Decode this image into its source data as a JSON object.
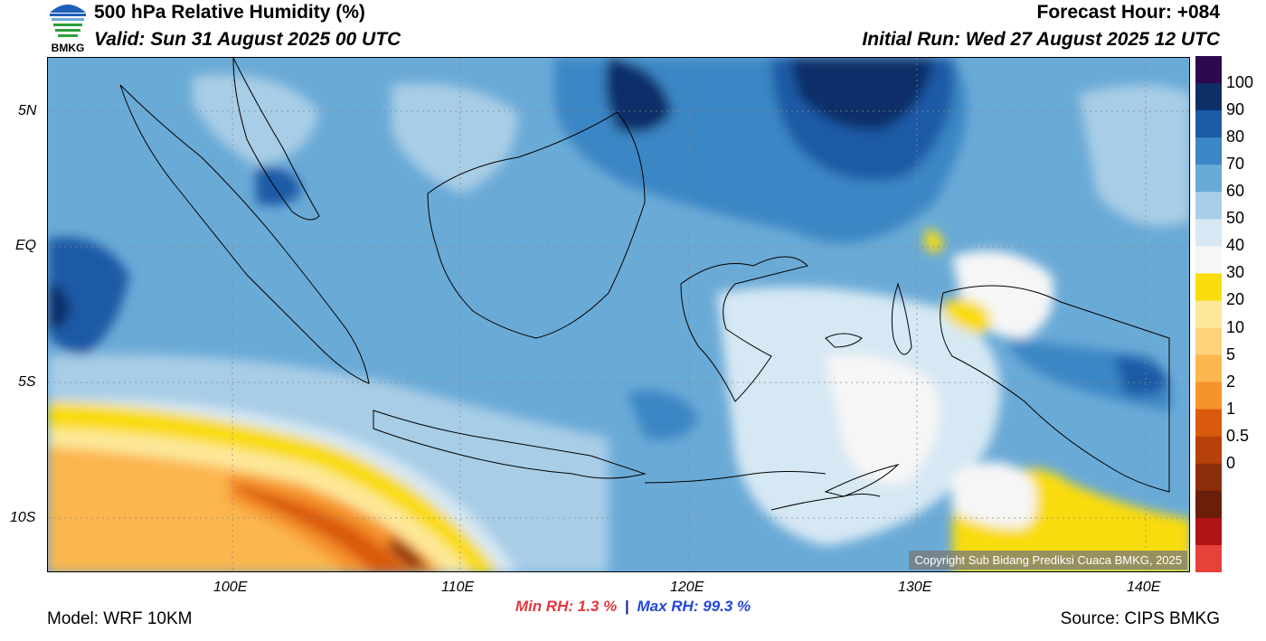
{
  "header": {
    "title": "500 hPa Relative Humidity (%)",
    "valid": "Valid: Sun 31 August 2025 00 UTC",
    "forecast_hour": "Forecast Hour: +084",
    "initial_run": "Initial Run: Wed 27 August 2025 12 UTC"
  },
  "logo": {
    "text": "BMKG",
    "icon": "bmkg-logo-icon"
  },
  "map": {
    "x_ticks": [
      "100E",
      "110E",
      "120E",
      "130E",
      "140E"
    ],
    "y_ticks": [
      "5N",
      "EQ",
      "5S",
      "10S"
    ],
    "copyright": "Copyright Sub Bidang Prediksi Cuaca BMKG, 2025"
  },
  "stats": {
    "min_label": "Min RH:",
    "min_value": "1.3 %",
    "separator": "|",
    "max_label": "Max RH:",
    "max_value": "99.3 %"
  },
  "colorbar": {
    "labels": [
      "100",
      "90",
      "80",
      "70",
      "60",
      "50",
      "40",
      "30",
      "20",
      "10",
      "5",
      "2",
      "1",
      "0.5",
      "0"
    ],
    "colors": [
      "#2d0a4e",
      "#0d2f68",
      "#1d5aa6",
      "#3b86c4",
      "#6aaad7",
      "#a8cde6",
      "#d6e8f3",
      "#f6f6f6",
      "#f9dc0b",
      "#fde89a",
      "#fdd27a",
      "#fbb64e",
      "#f6932b",
      "#d95a0c",
      "#b7410b",
      "#8c2d0a",
      "#6b1e0a",
      "#b01414",
      "#e8413a"
    ]
  },
  "footer": {
    "model": "Model: WRF 10KM",
    "source": "Source: CIPS BMKG"
  }
}
